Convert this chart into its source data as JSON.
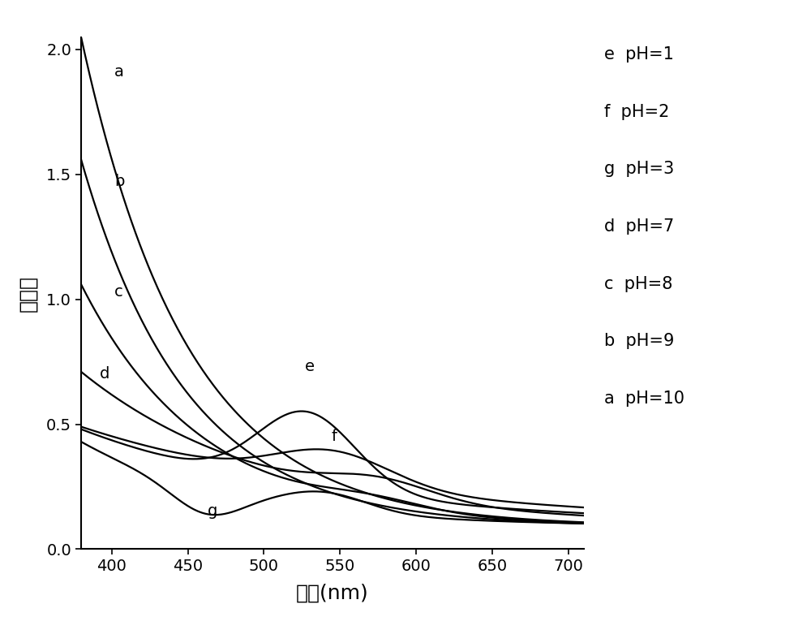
{
  "xlabel": "波长(nm)",
  "ylabel": "吸收值",
  "xlim": [
    380,
    710
  ],
  "ylim": [
    0.0,
    2.05
  ],
  "xticks": [
    400,
    450,
    500,
    550,
    600,
    650,
    700
  ],
  "yticks": [
    0.0,
    0.5,
    1.0,
    1.5,
    2.0
  ],
  "legend_entries": [
    "e  pH=1",
    "f  pH=2",
    "g  pH=3",
    "d  pH=7",
    "c  pH=8",
    "b  pH=9",
    "a  pH=10"
  ],
  "background_color": "#ffffff",
  "line_color": "#000000",
  "figure_width": 10.0,
  "figure_height": 7.6,
  "dpi": 100
}
